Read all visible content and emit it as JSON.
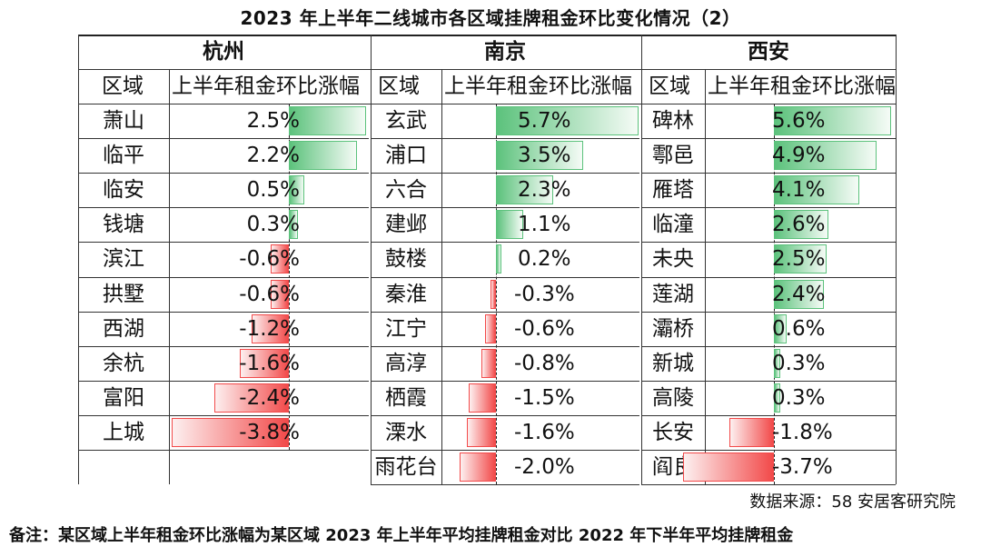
{
  "title": "2023 年上半年二线城市各区域挂牌租金环比变化情况（2）",
  "source": "数据来源：58 安居客研究院",
  "note": "备注：某区域上半年租金环比涨幅为某区域 2023 年上半年平均挂牌租金对比 2022 年下半年平均挂牌租金",
  "colors": {
    "positive": "#5cc27c",
    "negative": "#f24a4a"
  },
  "chart_data": {
    "type": "table",
    "title": "2023 年上半年二线城市各区域挂牌租金环比变化情况（2）",
    "column_headers": [
      "区域",
      "上半年租金环比涨幅"
    ],
    "groups": [
      {
        "city": "杭州",
        "rows": [
          {
            "district": "萧山",
            "value": 2.5,
            "label": "2.5%"
          },
          {
            "district": "临平",
            "value": 2.2,
            "label": "2.2%"
          },
          {
            "district": "临安",
            "value": 0.5,
            "label": "0.5%"
          },
          {
            "district": "钱塘",
            "value": 0.3,
            "label": "0.3%"
          },
          {
            "district": "滨江",
            "value": -0.6,
            "label": "-0.6%"
          },
          {
            "district": "拱墅",
            "value": -0.6,
            "label": "-0.6%"
          },
          {
            "district": "西湖",
            "value": -1.2,
            "label": "-1.2%"
          },
          {
            "district": "余杭",
            "value": -1.6,
            "label": "-1.6%"
          },
          {
            "district": "富阳",
            "value": -2.4,
            "label": "-2.4%"
          },
          {
            "district": "上城",
            "value": -3.8,
            "label": "-3.8%"
          }
        ]
      },
      {
        "city": "南京",
        "rows": [
          {
            "district": "玄武",
            "value": 5.7,
            "label": "5.7%"
          },
          {
            "district": "浦口",
            "value": 3.5,
            "label": "3.5%"
          },
          {
            "district": "六合",
            "value": 2.3,
            "label": "2.3%"
          },
          {
            "district": "建邺",
            "value": 1.1,
            "label": "1.1%"
          },
          {
            "district": "鼓楼",
            "value": 0.2,
            "label": "0.2%"
          },
          {
            "district": "秦淮",
            "value": -0.3,
            "label": "-0.3%"
          },
          {
            "district": "江宁",
            "value": -0.6,
            "label": "-0.6%"
          },
          {
            "district": "高淳",
            "value": -0.8,
            "label": "-0.8%"
          },
          {
            "district": "栖霞",
            "value": -1.5,
            "label": "-1.5%"
          },
          {
            "district": "溧水",
            "value": -1.6,
            "label": "-1.6%"
          },
          {
            "district": "雨花台",
            "value": -2.0,
            "label": "-2.0%"
          }
        ]
      },
      {
        "city": "西安",
        "rows": [
          {
            "district": "碑林",
            "value": 5.6,
            "label": "5.6%"
          },
          {
            "district": "鄠邑",
            "value": 4.9,
            "label": "4.9%"
          },
          {
            "district": "雁塔",
            "value": 4.1,
            "label": "4.1%"
          },
          {
            "district": "临潼",
            "value": 2.6,
            "label": "2.6%"
          },
          {
            "district": "未央",
            "value": 2.5,
            "label": "2.5%"
          },
          {
            "district": "莲湖",
            "value": 2.4,
            "label": "2.4%"
          },
          {
            "district": "灞桥",
            "value": 0.6,
            "label": "0.6%"
          },
          {
            "district": "新城",
            "value": 0.3,
            "label": "0.3%"
          },
          {
            "district": "高陵",
            "value": 0.3,
            "label": "0.3%"
          },
          {
            "district": "长安",
            "value": -1.8,
            "label": "-1.8%"
          },
          {
            "district": "阎良",
            "value": -3.7,
            "label": "-3.7%"
          }
        ]
      }
    ]
  }
}
